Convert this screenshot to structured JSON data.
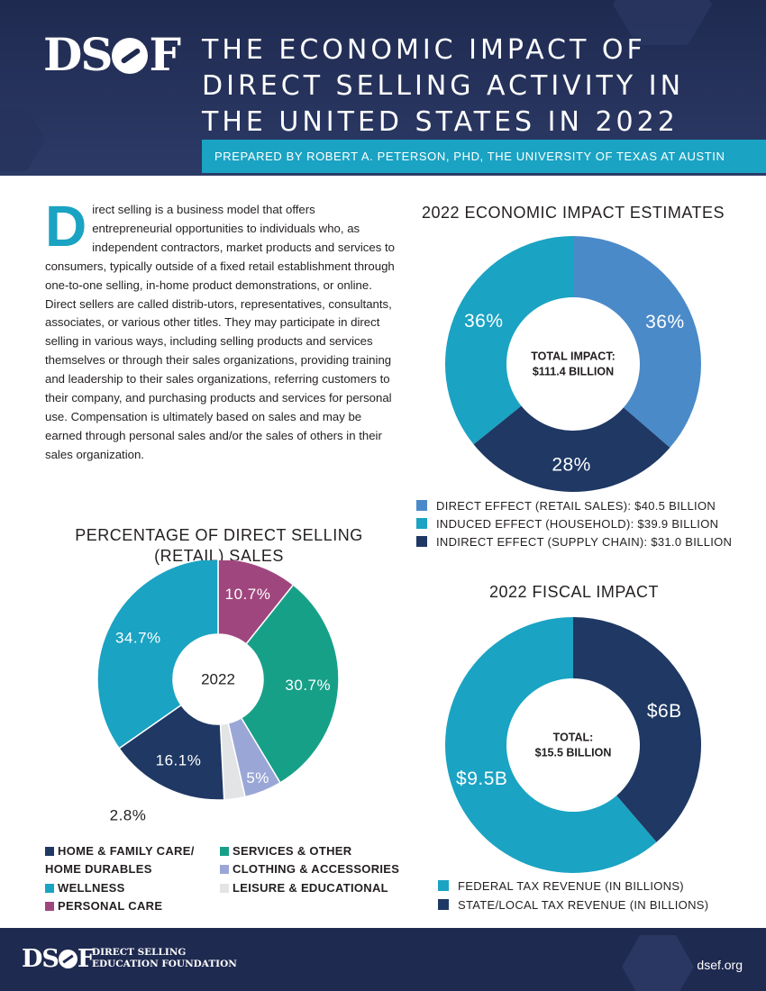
{
  "header": {
    "logo": "DSEF",
    "title_lines": [
      "THE ECONOMIC IMPACT OF",
      "DIRECT SELLING ACTIVITY IN",
      "THE UNITED STATES IN 2022"
    ],
    "prepared_by": "PREPARED BY ROBERT A. PETERSON, PHD, THE UNIVERSITY OF TEXAS AT AUSTIN"
  },
  "intro": {
    "dropcap": "D",
    "text": "irect selling is a business model that offers entrepreneurial opportunities to individuals who, as independent contractors, market products and services to consumers, typically outside of a fixed retail establishment through one-to-one selling, in-home product demonstrations, or online. Direct sellers are called distrib-utors, representatives, consultants, associates, or various other titles. They may participate in direct selling in various ways, including selling products and services themselves or through their sales organizations, providing training and leadership to their sales organizations, referring customers to their company, and purchasing products and services for personal use. Compensation is ultimately based on sales and may be earned through personal sales and/or the sales of others in their sales organization."
  },
  "colors": {
    "light_blue": "#4a8ac9",
    "teal": "#1aa3c3",
    "navy": "#1f3864",
    "green": "#17a088",
    "lavender": "#9aa7d6",
    "light_gray": "#e2e4e6",
    "plum": "#a0467e"
  },
  "chart_data": [
    {
      "type": "pie",
      "title": "2022 ECONOMIC IMPACT ESTIMATES",
      "center_label_lines": [
        "TOTAL IMPACT:",
        "$111.4 BILLION"
      ],
      "slices": [
        {
          "name": "DIRECT EFFECT (RETAIL SALES): $40.5 BILLION",
          "value": 40.5,
          "label": "36%",
          "color": "#4a8ac9"
        },
        {
          "name": "INDIRECT EFFECT (SUPPLY CHAIN): $31.0 BILLION",
          "value": 31.0,
          "label": "28%",
          "color": "#1f3864"
        },
        {
          "name": "INDUCED EFFECT (HOUSEHOLD): $39.9 BILLION",
          "value": 39.9,
          "label": "36%",
          "color": "#1aa3c3"
        }
      ],
      "legend": [
        {
          "label": "DIRECT EFFECT (RETAIL SALES): $40.5 BILLION",
          "color": "#4a8ac9"
        },
        {
          "label": "INDUCED EFFECT (HOUSEHOLD): $39.9 BILLION",
          "color": "#1aa3c3"
        },
        {
          "label": "INDIRECT EFFECT (SUPPLY CHAIN): $31.0 BILLION",
          "color": "#1f3864"
        }
      ]
    },
    {
      "type": "pie",
      "title_lines": [
        "PERCENTAGE OF DIRECT SELLING",
        "(RETAIL) SALES"
      ],
      "center_label_lines": [
        "2022"
      ],
      "slices": [
        {
          "name": "PERSONAL CARE",
          "value": 10.7,
          "label": "10.7%",
          "color": "#a0467e"
        },
        {
          "name": "SERVICES & OTHER",
          "value": 30.7,
          "label": "30.7%",
          "color": "#17a088"
        },
        {
          "name": "CLOTHING & ACCESSORIES",
          "value": 5.0,
          "label": "5%",
          "color": "#9aa7d6"
        },
        {
          "name": "LEISURE & EDUCATIONAL",
          "value": 2.8,
          "label": "2.8%",
          "color": "#e2e4e6"
        },
        {
          "name": "HOME & FAMILY CARE/ HOME DURABLES",
          "value": 16.1,
          "label": "16.1%",
          "color": "#1f3864"
        },
        {
          "name": "WELLNESS",
          "value": 34.7,
          "label": "34.7%",
          "color": "#1aa3c3"
        }
      ],
      "legend": [
        {
          "label": "HOME & FAMILY CARE/",
          "label2": "HOME DURABLES",
          "color": "#1f3864"
        },
        {
          "label": "WELLNESS",
          "color": "#1aa3c3"
        },
        {
          "label": "PERSONAL CARE",
          "color": "#a0467e"
        },
        {
          "label": "SERVICES & OTHER",
          "color": "#17a088"
        },
        {
          "label": "CLOTHING & ACCESSORIES",
          "color": "#9aa7d6"
        },
        {
          "label": "LEISURE & EDUCATIONAL",
          "color": "#e2e4e6"
        }
      ]
    },
    {
      "type": "pie",
      "title": "2022 FISCAL IMPACT",
      "center_label_lines": [
        "TOTAL:",
        "$15.5 BILLION"
      ],
      "slices": [
        {
          "name": "STATE/LOCAL TAX REVENUE (IN BILLIONS)",
          "value": 6.0,
          "label": "$6B",
          "color": "#1f3864"
        },
        {
          "name": "FEDERAL TAX REVENUE (IN BILLIONS)",
          "value": 9.5,
          "label": "$9.5B",
          "color": "#1aa3c3"
        }
      ],
      "legend": [
        {
          "label": "FEDERAL TAX REVENUE (IN BILLIONS)",
          "color": "#1aa3c3"
        },
        {
          "label": "STATE/LOCAL TAX REVENUE (IN BILLIONS)",
          "color": "#1f3864"
        }
      ]
    }
  ],
  "footer": {
    "logo": "DSEF",
    "org_lines": [
      "DIRECT SELLING",
      "EDUCATION FOUNDATION"
    ],
    "url": "dsef.org"
  }
}
